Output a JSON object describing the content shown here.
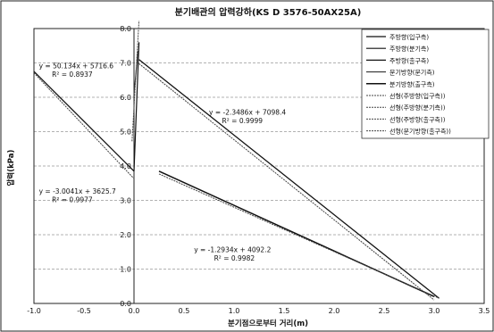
{
  "chart_data": {
    "type": "line",
    "title": "분기배관의 압력강하(KS D 3576-50AX25A)",
    "xlabel": "분기점으로부터 거리(m)",
    "ylabel": "압력(kPa)",
    "xlim": [
      -1.0,
      3.5
    ],
    "ylim": [
      0.0,
      8.0
    ],
    "xticks": [
      -1.0,
      -0.5,
      0.0,
      0.5,
      1.0,
      1.5,
      2.0,
      2.5,
      3.0,
      3.5
    ],
    "yticks": [
      0.0,
      1.0,
      2.0,
      3.0,
      4.0,
      5.0,
      6.0,
      7.0,
      8.0
    ],
    "xtick_labels": [
      "-1.0",
      "-0.5",
      "0.0",
      "0.5",
      "1.0",
      "1.5",
      "2.0",
      "2.5",
      "3.0",
      "3.5"
    ],
    "ytick_labels": [
      "0.0",
      "1.0",
      "2.0",
      "3.0",
      "4.0",
      "5.0",
      "6.0",
      "7.0",
      "8.0"
    ],
    "grid": true,
    "legend_position": "right",
    "series": [
      {
        "name": "주방향(입구측)",
        "x": [
          -1.0,
          0.0
        ],
        "y": [
          6.75,
          3.85
        ]
      },
      {
        "name": "주방향(분기측)",
        "x": [
          0.0,
          0.05
        ],
        "y": [
          3.85,
          7.6
        ]
      },
      {
        "name": "주방향(출구측)",
        "x": [
          0.05,
          3.05
        ],
        "y": [
          7.1,
          0.15
        ]
      },
      {
        "name": "분기방향(분기측)",
        "x": [
          0.0,
          0.04
        ],
        "y": [
          6.1,
          7.35
        ]
      },
      {
        "name": "분기방향(출구측)",
        "x": [
          0.25,
          3.0
        ],
        "y": [
          3.85,
          0.2
        ]
      },
      {
        "name": "선형(주방향(입구측))",
        "x": [
          -1.0,
          0.0
        ],
        "y": [
          6.71,
          3.63
        ]
      },
      {
        "name": "선형(주방향(분기측))",
        "x": [
          -0.02,
          0.05
        ],
        "y": [
          4.72,
          8.23
        ]
      },
      {
        "name": "선형(주방향(출구측))",
        "x": [
          0.05,
          3.0
        ],
        "y": [
          6.98,
          0.1
        ]
      },
      {
        "name": "선형(분기방향(출구측))",
        "x": [
          0.25,
          3.05
        ],
        "y": [
          3.77,
          0.15
        ]
      }
    ],
    "annotations": [
      {
        "text": "y = 50.134x + 5716.6",
        "x": -0.95,
        "y": 6.85
      },
      {
        "text": "R² = 0.8937",
        "x": -0.82,
        "y": 6.6
      },
      {
        "text": "y = -2.3486x + 7098.4",
        "x": 0.75,
        "y": 5.5
      },
      {
        "text": "R² = 0.9999",
        "x": 0.88,
        "y": 5.25
      },
      {
        "text": "y = -3.0041x + 3625.7",
        "x": -0.95,
        "y": 3.2
      },
      {
        "text": "R² = 0.9977",
        "x": -0.82,
        "y": 2.95
      },
      {
        "text": "y = -1.2934x + 4092.2",
        "x": 0.6,
        "y": 1.5
      },
      {
        "text": "R² = 0.9982",
        "x": 0.8,
        "y": 1.25
      }
    ]
  }
}
